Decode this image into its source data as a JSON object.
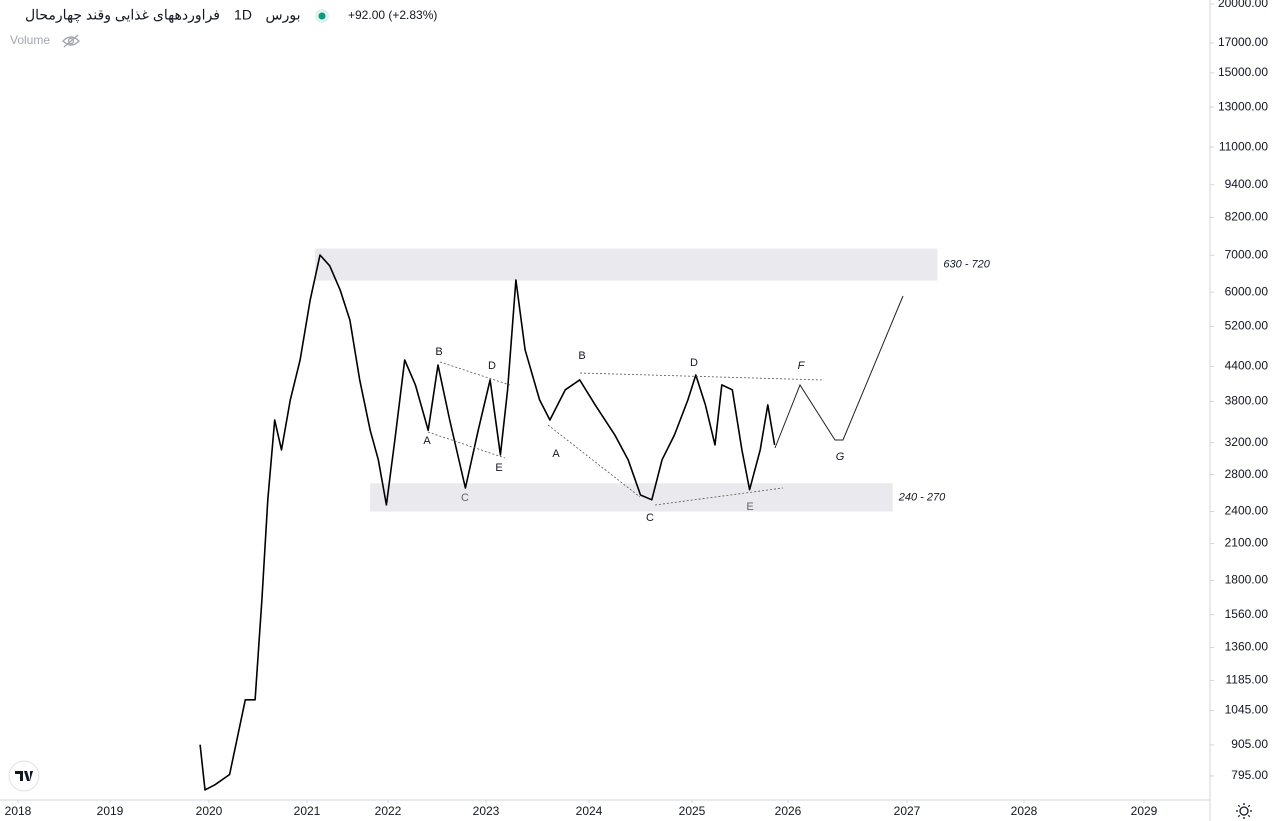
{
  "header": {
    "symbol": "فراوردههای غذایی وقند چهارمحال",
    "interval": "1D",
    "exchange": "بورس",
    "change": "+92.00 (+2.83%)",
    "volume": "Volume"
  },
  "chart_data": {
    "type": "line",
    "log_scale": true,
    "color": "#000000",
    "x": [
      2019.91,
      2019.96,
      2020.06,
      2020.21,
      2020.37,
      2020.47,
      2020.54,
      2020.6,
      2020.67,
      2020.74,
      2020.83,
      2020.93,
      2021.04,
      2021.16,
      2021.28,
      2021.41,
      2021.53,
      2021.65,
      2021.78,
      2021.88,
      2021.98,
      2022.07,
      2022.17,
      2022.28,
      2022.41,
      2022.51,
      2022.63,
      2022.79,
      2022.92,
      2023.04,
      2023.14,
      2023.21,
      2023.29,
      2023.38,
      2023.52,
      2023.62,
      2023.77,
      2023.91,
      2024.06,
      2024.25,
      2024.38,
      2024.5,
      2024.61,
      2024.71,
      2024.83,
      2024.96,
      2025.04,
      2025.14,
      2025.24,
      2025.31,
      2025.42,
      2025.52,
      2025.6,
      2025.71,
      2025.79,
      2025.86
    ],
    "values": [
      906,
      750,
      766,
      800,
      1093,
      1093,
      1660,
      2520,
      3518,
      3104,
      3826,
      4520,
      5810,
      7010,
      6700,
      6054,
      5340,
      4160,
      3370,
      2980,
      2467,
      3240,
      4520,
      4074,
      3370,
      4427,
      3518,
      2648,
      3370,
      4160,
      3040,
      3990,
      6314,
      4716,
      3826,
      3518,
      3990,
      4160,
      3746,
      3306,
      2980,
      2571,
      2520,
      2980,
      3306,
      3826,
      4246,
      3746,
      3170,
      4074,
      3990,
      3104,
      2629,
      3104,
      3746,
      3170
    ],
    "zones": [
      {
        "label": "630 - 720",
        "low": 6300,
        "high": 7200,
        "x0": 2021.1,
        "x1": 2027.26
      },
      {
        "label": "240 - 270",
        "low": 2400,
        "high": 2700,
        "x0": 2021.78,
        "x1": 2026.88
      }
    ],
    "annotations": [
      "B",
      "D",
      "A",
      "E",
      "C",
      "B",
      "A",
      "C",
      "D",
      "E",
      "F",
      "G"
    ],
    "xlim": [
      2017.8,
      2029.55
    ],
    "xticks": [
      2018,
      2019,
      2020,
      2021,
      2022,
      2023,
      2024,
      2025,
      2026,
      2027,
      2028,
      2029
    ],
    "ylim": [
      719,
      20340
    ],
    "yticks": [
      {
        "value": 795,
        "label": "795.00"
      },
      {
        "value": 905,
        "label": "905.00"
      },
      {
        "value": 1045,
        "label": "1045.00"
      },
      {
        "value": 1185,
        "label": "1185.00"
      },
      {
        "value": 1360,
        "label": "1360.00"
      },
      {
        "value": 1560,
        "label": "1560.00"
      },
      {
        "value": 1800,
        "label": "1800.00"
      },
      {
        "value": 2100,
        "label": "2100.00"
      },
      {
        "value": 2400,
        "label": "2400.00"
      },
      {
        "value": 2800,
        "label": "2800.00"
      },
      {
        "value": 3200,
        "label": "3200.00"
      },
      {
        "value": 3800,
        "label": "3800.00"
      },
      {
        "value": 4400,
        "label": "4400.00"
      },
      {
        "value": 5200,
        "label": "5200.00"
      },
      {
        "value": 6000,
        "label": "6000.00"
      },
      {
        "value": 7000,
        "label": "7000.00"
      },
      {
        "value": 8200,
        "label": "8200.00"
      },
      {
        "value": 9400,
        "label": "9400.00"
      },
      {
        "value": 11000,
        "label": "11000.00"
      },
      {
        "value": 13000,
        "label": "13000.00"
      },
      {
        "value": 15000,
        "label": "15000.00"
      },
      {
        "value": 17000,
        "label": "17000.00"
      },
      {
        "value": 20000,
        "label": "20000.00"
      }
    ]
  }
}
